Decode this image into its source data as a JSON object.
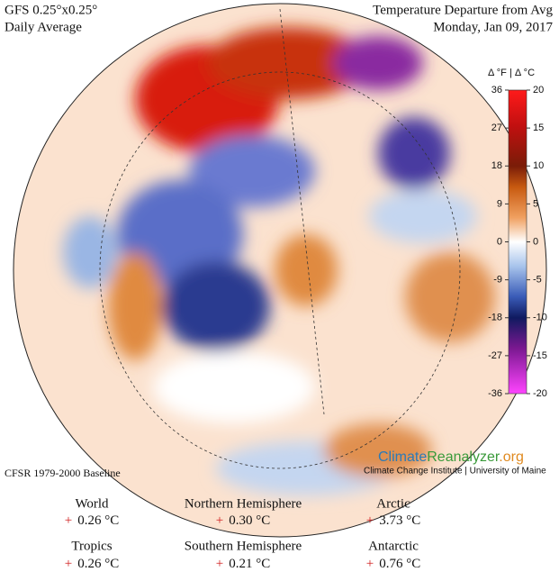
{
  "header": {
    "model": "GFS 0.25°x0.25°",
    "period": "Daily Average",
    "title": "Temperature Departure from Avg",
    "date": "Monday, Jan 09, 2017"
  },
  "colorbar": {
    "units": "Δ °F | Δ °C",
    "f_lim": [
      -36,
      36
    ],
    "f_ticks": [
      36,
      27,
      18,
      9,
      0,
      -9,
      -18,
      -27,
      -36
    ],
    "c_lim": [
      -20,
      20
    ],
    "c_ticks": [
      20,
      15,
      10,
      5,
      0,
      -5,
      -10,
      -15,
      -20
    ]
  },
  "baseline": "CFSR 1979-2000 Baseline",
  "logo": {
    "part1": "Climate",
    "part2": "Reanalyzer",
    "part3": ".org",
    "credit": "Climate Change Institute | University of Maine"
  },
  "stats": [
    {
      "label": "World",
      "sign": "+",
      "value": "0.26 °C"
    },
    {
      "label": "Northern Hemisphere",
      "sign": "+",
      "value": "0.30 °C"
    },
    {
      "label": "Arctic",
      "sign": "+",
      "value": "3.73 °C"
    },
    {
      "label": "Tropics",
      "sign": "+",
      "value": "0.26 °C"
    },
    {
      "label": "Southern Hemisphere",
      "sign": "+",
      "value": "0.21 °C"
    },
    {
      "label": "Antarctic",
      "sign": "+",
      "value": "0.76 °C"
    }
  ]
}
